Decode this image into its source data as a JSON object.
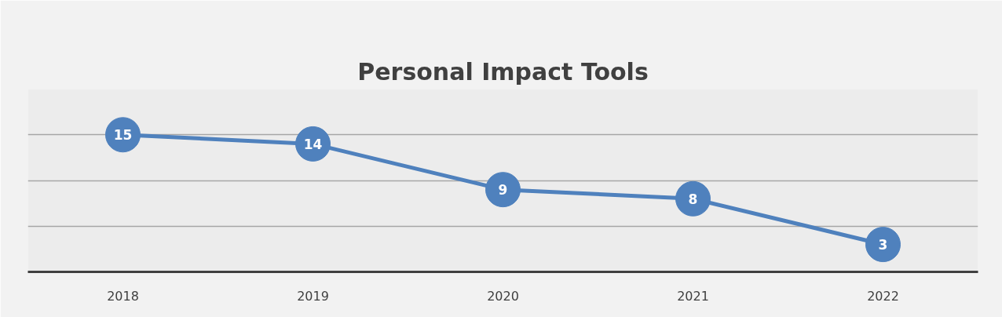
{
  "chart_data": {
    "type": "line",
    "title": "Personal Impact Tools",
    "categories": [
      "2018",
      "2019",
      "2020",
      "2021",
      "2022"
    ],
    "series": [
      {
        "color": "#4f81bd",
        "values": [
          15,
          14,
          9,
          8,
          3
        ]
      }
    ],
    "ylim": [
      0,
      20
    ],
    "yticks": [
      {
        "value": 0,
        "label": null
      },
      {
        "value": 5,
        "label": null
      },
      {
        "value": 10,
        "label": null
      },
      {
        "value": 15,
        "label": null
      },
      {
        "value": 20,
        "label": null
      }
    ],
    "tick_labels": "x",
    "grid": "y",
    "marker": "circle",
    "line_style": "solid",
    "data_labels": true
  }
}
